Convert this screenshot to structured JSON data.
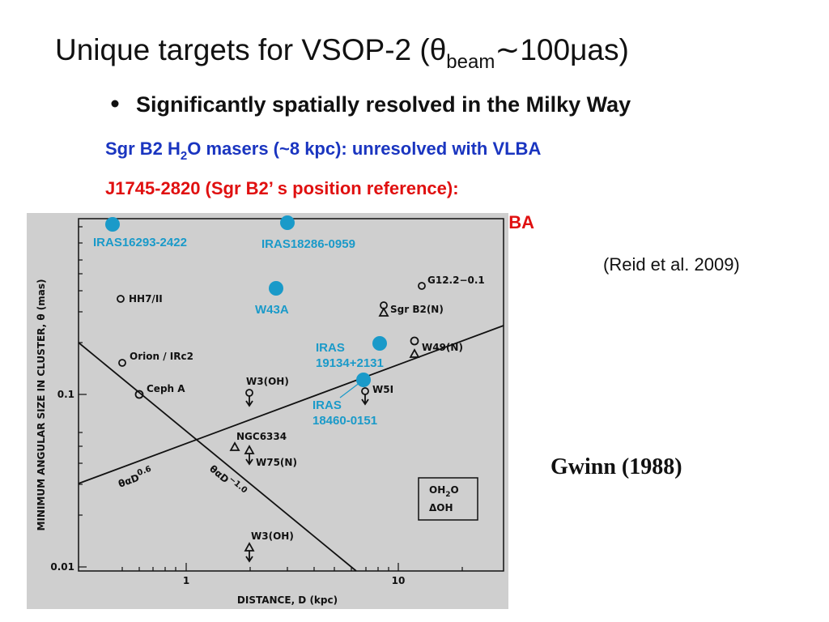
{
  "title": {
    "before": "Unique targets for VSOP-2 (θ",
    "sub": "beam",
    "after": "∼100μas)"
  },
  "bullet": "Significantly spatially resolved in the Milky Way",
  "lines": [
    {
      "before": "Sgr B2 H",
      "sub": "2",
      "after": "O masers (~8 kpc): unresolved with VLBA"
    },
    {
      "text": "J1745-2820 (Sgr B2’ s position reference):"
    },
    {
      "text": "resolved with VLBA"
    }
  ],
  "reference": "(Reid et al. 2009)",
  "credit": "Gwinn (1988)",
  "figure": {
    "y_axis_label": "MINIMUM ANGULAR SIZE IN CLUSTER, θ (mas)",
    "x_axis_label": "DISTANCE, D (kpc)",
    "y_ticks": [
      "0.1",
      "0.01"
    ],
    "x_ticks": [
      "1",
      "10"
    ],
    "sources": [
      "HH7/II",
      "Orion / IRc2",
      "Ceph A",
      "W3(OH)",
      "NGC6334",
      "W75(N)",
      "W3(OH)",
      "G12.2−0.1",
      "Sgr B2(N)",
      "W49(N)",
      "W5I"
    ],
    "fit_lines": [
      {
        "base": "θαD",
        "exp": "0.6"
      },
      {
        "base": "θαD",
        "exp": "−1.0"
      }
    ],
    "legend": {
      "h2o": {
        "before": "OH",
        "sub": "2",
        "after": "O"
      },
      "oh": "ΔOH"
    },
    "new_targets": [
      [
        "IRAS16293-2422"
      ],
      [
        "IRAS18286-0959"
      ],
      [
        "W43A"
      ],
      [
        "IRAS",
        "19134+2131"
      ],
      [
        "IRAS",
        "18460-0151"
      ]
    ]
  }
}
